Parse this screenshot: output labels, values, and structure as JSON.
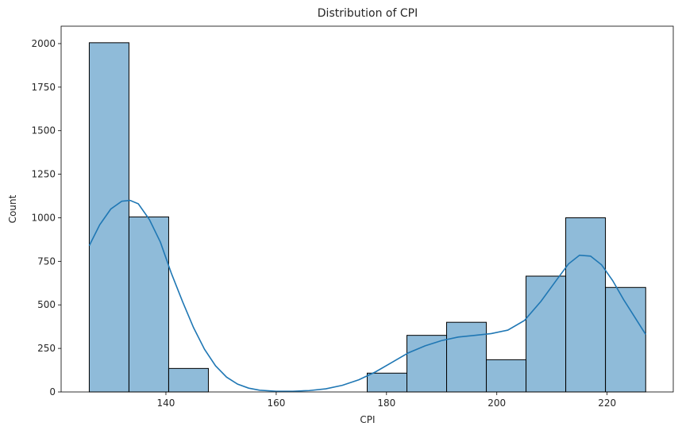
{
  "chart_data": {
    "type": "bar",
    "title": "Distribution of CPI",
    "xlabel": "CPI",
    "ylabel": "Count",
    "xlim": [
      121,
      232
    ],
    "ylim": [
      0,
      2100
    ],
    "xticks": [
      140,
      160,
      180,
      200,
      220
    ],
    "yticks": [
      0,
      250,
      500,
      750,
      1000,
      1250,
      1500,
      1750,
      2000
    ],
    "bins": [
      {
        "x0": 126.1,
        "x1": 133.3,
        "count": 2005
      },
      {
        "x0": 133.3,
        "x1": 140.5,
        "count": 1005
      },
      {
        "x0": 140.5,
        "x1": 147.7,
        "count": 135
      },
      {
        "x0": 147.7,
        "x1": 154.9,
        "count": 0
      },
      {
        "x0": 154.9,
        "x1": 162.1,
        "count": 0
      },
      {
        "x0": 162.1,
        "x1": 169.3,
        "count": 0
      },
      {
        "x0": 169.3,
        "x1": 176.5,
        "count": 0
      },
      {
        "x0": 176.5,
        "x1": 183.7,
        "count": 108
      },
      {
        "x0": 183.7,
        "x1": 190.9,
        "count": 325
      },
      {
        "x0": 190.9,
        "x1": 198.1,
        "count": 400
      },
      {
        "x0": 198.1,
        "x1": 205.3,
        "count": 185
      },
      {
        "x0": 205.3,
        "x1": 212.5,
        "count": 665
      },
      {
        "x0": 212.5,
        "x1": 219.7,
        "count": 1000
      },
      {
        "x0": 219.7,
        "x1": 227.0,
        "count": 600
      }
    ],
    "kde": {
      "x": [
        126.1,
        128,
        130,
        132,
        133.5,
        135,
        137,
        139,
        141,
        143,
        145,
        147,
        149,
        151,
        153,
        155,
        157,
        160,
        163,
        166,
        169,
        172,
        175,
        178,
        181,
        184,
        187,
        190,
        193,
        196,
        199,
        202,
        205,
        208,
        211,
        213,
        215,
        217,
        219,
        221,
        223,
        225,
        227
      ],
      "y": [
        840,
        960,
        1050,
        1095,
        1100,
        1080,
        990,
        860,
        680,
        520,
        370,
        245,
        150,
        85,
        45,
        22,
        10,
        4,
        4,
        8,
        18,
        38,
        70,
        115,
        170,
        225,
        265,
        295,
        315,
        325,
        335,
        355,
        410,
        520,
        650,
        735,
        785,
        780,
        730,
        640,
        530,
        430,
        330
      ]
    },
    "bar_color": "#1f77b4",
    "bar_fill_opacity": 0.5,
    "bar_edge_color": "#000000",
    "line_color": "#1f77b4",
    "grid": false
  }
}
